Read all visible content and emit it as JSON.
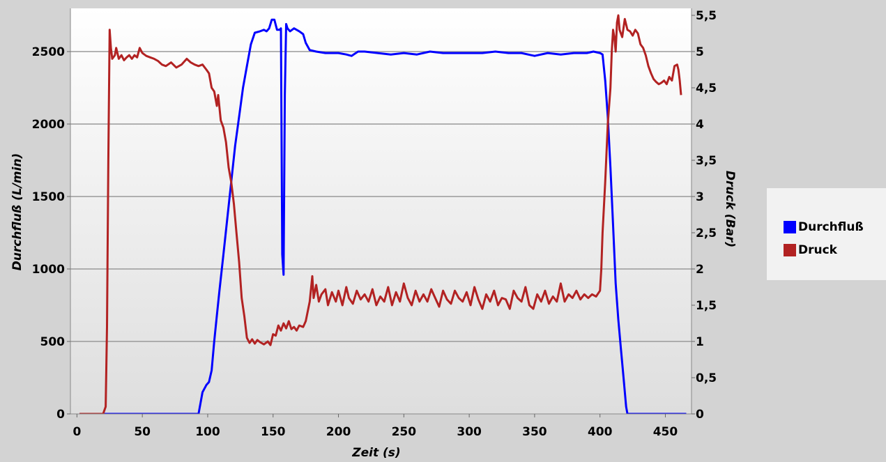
{
  "chart_data": {
    "type": "line",
    "title": "",
    "xlabel": "Zeit (s)",
    "ylabel": "Durchfluß (L/min)",
    "y2label": "Druck (Bar)",
    "xlim": [
      -5,
      470
    ],
    "ylim": [
      0,
      2750
    ],
    "y2lim": [
      0,
      5.5
    ],
    "x_ticks": [
      "0",
      "50",
      "100",
      "150",
      "200",
      "250",
      "300",
      "350",
      "400",
      "450"
    ],
    "x_tick_values": [
      0,
      50,
      100,
      150,
      200,
      250,
      300,
      350,
      400,
      450
    ],
    "y_ticks": [
      "0",
      "500",
      "1000",
      "1500",
      "2000",
      "2500"
    ],
    "y_tick_values": [
      0,
      500,
      1000,
      1500,
      2000,
      2500
    ],
    "y2_ticks": [
      "0",
      "0,5",
      "1",
      "1,5",
      "2",
      "2,5",
      "3",
      "3,5",
      "4",
      "4,5",
      "5",
      "5,5"
    ],
    "y2_tick_values": [
      0,
      0.5,
      1,
      1.5,
      2,
      2.5,
      3,
      3.5,
      4,
      4.5,
      5,
      5.5
    ],
    "grid": "horizontal",
    "legend_position": "right",
    "series": [
      {
        "name": "Durchfluß",
        "axis": "left",
        "color": "#0000ff",
        "points": [
          [
            2,
            0
          ],
          [
            20,
            0
          ],
          [
            50,
            0
          ],
          [
            80,
            0
          ],
          [
            93,
            0
          ],
          [
            96,
            150
          ],
          [
            99,
            200
          ],
          [
            101,
            220
          ],
          [
            103,
            300
          ],
          [
            105,
            500
          ],
          [
            107,
            680
          ],
          [
            109,
            850
          ],
          [
            112,
            1100
          ],
          [
            115,
            1350
          ],
          [
            118,
            1600
          ],
          [
            121,
            1850
          ],
          [
            124,
            2050
          ],
          [
            127,
            2250
          ],
          [
            130,
            2400
          ],
          [
            133,
            2550
          ],
          [
            136,
            2630
          ],
          [
            140,
            2640
          ],
          [
            143,
            2650
          ],
          [
            145,
            2640
          ],
          [
            147,
            2660
          ],
          [
            149,
            2720
          ],
          [
            151,
            2720
          ],
          [
            153,
            2650
          ],
          [
            155,
            2650
          ],
          [
            156,
            2660
          ],
          [
            157,
            1100
          ],
          [
            158,
            960
          ],
          [
            159,
            2200
          ],
          [
            160,
            2690
          ],
          [
            161,
            2660
          ],
          [
            163,
            2640
          ],
          [
            166,
            2660
          ],
          [
            170,
            2640
          ],
          [
            173,
            2620
          ],
          [
            175,
            2560
          ],
          [
            178,
            2510
          ],
          [
            183,
            2500
          ],
          [
            190,
            2490
          ],
          [
            200,
            2490
          ],
          [
            206,
            2480
          ],
          [
            210,
            2470
          ],
          [
            215,
            2500
          ],
          [
            220,
            2500
          ],
          [
            230,
            2490
          ],
          [
            240,
            2480
          ],
          [
            250,
            2490
          ],
          [
            260,
            2480
          ],
          [
            270,
            2500
          ],
          [
            280,
            2490
          ],
          [
            290,
            2490
          ],
          [
            300,
            2490
          ],
          [
            310,
            2490
          ],
          [
            320,
            2500
          ],
          [
            330,
            2490
          ],
          [
            340,
            2490
          ],
          [
            350,
            2470
          ],
          [
            360,
            2490
          ],
          [
            370,
            2480
          ],
          [
            380,
            2490
          ],
          [
            390,
            2490
          ],
          [
            395,
            2500
          ],
          [
            400,
            2490
          ],
          [
            402,
            2480
          ],
          [
            404,
            2300
          ],
          [
            406,
            2050
          ],
          [
            408,
            1700
          ],
          [
            410,
            1300
          ],
          [
            412,
            900
          ],
          [
            414,
            650
          ],
          [
            416,
            450
          ],
          [
            418,
            250
          ],
          [
            420,
            50
          ],
          [
            421,
            0
          ],
          [
            440,
            0
          ],
          [
            466,
            0
          ]
        ]
      },
      {
        "name": "Druck",
        "axis": "right",
        "color": "#b22222",
        "points": [
          [
            2,
            0
          ],
          [
            20,
            0
          ],
          [
            22,
            0.1
          ],
          [
            23,
            1.2
          ],
          [
            24,
            3.5
          ],
          [
            25,
            5.3
          ],
          [
            26,
            5.05
          ],
          [
            27,
            4.9
          ],
          [
            29,
            4.95
          ],
          [
            30,
            5.05
          ],
          [
            32,
            4.9
          ],
          [
            34,
            4.95
          ],
          [
            36,
            4.88
          ],
          [
            38,
            4.92
          ],
          [
            40,
            4.95
          ],
          [
            42,
            4.9
          ],
          [
            44,
            4.95
          ],
          [
            46,
            4.92
          ],
          [
            48,
            5.05
          ],
          [
            50,
            4.98
          ],
          [
            53,
            4.94
          ],
          [
            56,
            4.92
          ],
          [
            59,
            4.9
          ],
          [
            62,
            4.87
          ],
          [
            65,
            4.82
          ],
          [
            68,
            4.8
          ],
          [
            72,
            4.85
          ],
          [
            76,
            4.78
          ],
          [
            80,
            4.82
          ],
          [
            84,
            4.9
          ],
          [
            87,
            4.85
          ],
          [
            90,
            4.82
          ],
          [
            93,
            4.8
          ],
          [
            96,
            4.82
          ],
          [
            99,
            4.75
          ],
          [
            101,
            4.7
          ],
          [
            103,
            4.5
          ],
          [
            105,
            4.45
          ],
          [
            107,
            4.25
          ],
          [
            108,
            4.4
          ],
          [
            110,
            4.05
          ],
          [
            112,
            3.95
          ],
          [
            114,
            3.75
          ],
          [
            116,
            3.4
          ],
          [
            118,
            3.2
          ],
          [
            120,
            2.9
          ],
          [
            122,
            2.5
          ],
          [
            124,
            2.1
          ],
          [
            126,
            1.6
          ],
          [
            128,
            1.35
          ],
          [
            130,
            1.05
          ],
          [
            132,
            0.98
          ],
          [
            134,
            1.03
          ],
          [
            136,
            0.97
          ],
          [
            138,
            1.02
          ],
          [
            140,
            0.99
          ],
          [
            143,
            0.96
          ],
          [
            146,
            1.0
          ],
          [
            148,
            0.95
          ],
          [
            150,
            1.1
          ],
          [
            152,
            1.08
          ],
          [
            154,
            1.22
          ],
          [
            156,
            1.15
          ],
          [
            158,
            1.25
          ],
          [
            160,
            1.18
          ],
          [
            162,
            1.28
          ],
          [
            164,
            1.17
          ],
          [
            166,
            1.2
          ],
          [
            168,
            1.15
          ],
          [
            170,
            1.22
          ],
          [
            173,
            1.2
          ],
          [
            175,
            1.28
          ],
          [
            178,
            1.55
          ],
          [
            180,
            1.9
          ],
          [
            181,
            1.6
          ],
          [
            183,
            1.78
          ],
          [
            185,
            1.55
          ],
          [
            187,
            1.65
          ],
          [
            190,
            1.72
          ],
          [
            192,
            1.5
          ],
          [
            195,
            1.68
          ],
          [
            198,
            1.55
          ],
          [
            200,
            1.7
          ],
          [
            203,
            1.5
          ],
          [
            206,
            1.75
          ],
          [
            208,
            1.6
          ],
          [
            211,
            1.52
          ],
          [
            214,
            1.7
          ],
          [
            217,
            1.58
          ],
          [
            220,
            1.65
          ],
          [
            223,
            1.55
          ],
          [
            226,
            1.72
          ],
          [
            229,
            1.5
          ],
          [
            232,
            1.62
          ],
          [
            235,
            1.55
          ],
          [
            238,
            1.75
          ],
          [
            241,
            1.5
          ],
          [
            244,
            1.68
          ],
          [
            247,
            1.55
          ],
          [
            250,
            1.8
          ],
          [
            253,
            1.6
          ],
          [
            256,
            1.5
          ],
          [
            259,
            1.7
          ],
          [
            262,
            1.55
          ],
          [
            265,
            1.65
          ],
          [
            268,
            1.55
          ],
          [
            271,
            1.72
          ],
          [
            274,
            1.6
          ],
          [
            277,
            1.48
          ],
          [
            280,
            1.7
          ],
          [
            283,
            1.58
          ],
          [
            286,
            1.52
          ],
          [
            289,
            1.7
          ],
          [
            292,
            1.6
          ],
          [
            295,
            1.55
          ],
          [
            298,
            1.68
          ],
          [
            301,
            1.5
          ],
          [
            304,
            1.75
          ],
          [
            307,
            1.58
          ],
          [
            310,
            1.45
          ],
          [
            313,
            1.65
          ],
          [
            316,
            1.55
          ],
          [
            319,
            1.7
          ],
          [
            322,
            1.5
          ],
          [
            325,
            1.6
          ],
          [
            328,
            1.58
          ],
          [
            331,
            1.45
          ],
          [
            334,
            1.7
          ],
          [
            337,
            1.6
          ],
          [
            340,
            1.55
          ],
          [
            343,
            1.75
          ],
          [
            346,
            1.5
          ],
          [
            349,
            1.45
          ],
          [
            352,
            1.65
          ],
          [
            355,
            1.55
          ],
          [
            358,
            1.7
          ],
          [
            361,
            1.52
          ],
          [
            364,
            1.62
          ],
          [
            367,
            1.55
          ],
          [
            370,
            1.8
          ],
          [
            373,
            1.55
          ],
          [
            376,
            1.65
          ],
          [
            379,
            1.6
          ],
          [
            382,
            1.7
          ],
          [
            385,
            1.58
          ],
          [
            388,
            1.65
          ],
          [
            391,
            1.6
          ],
          [
            394,
            1.65
          ],
          [
            397,
            1.62
          ],
          [
            400,
            1.7
          ],
          [
            401,
            2.0
          ],
          [
            402,
            2.5
          ],
          [
            404,
            3.2
          ],
          [
            406,
            4.0
          ],
          [
            408,
            4.5
          ],
          [
            409,
            5.0
          ],
          [
            410,
            5.3
          ],
          [
            411,
            5.2
          ],
          [
            412,
            5.0
          ],
          [
            413,
            5.4
          ],
          [
            414,
            5.5
          ],
          [
            415,
            5.3
          ],
          [
            417,
            5.2
          ],
          [
            419,
            5.45
          ],
          [
            421,
            5.3
          ],
          [
            423,
            5.28
          ],
          [
            425,
            5.22
          ],
          [
            427,
            5.3
          ],
          [
            429,
            5.25
          ],
          [
            431,
            5.1
          ],
          [
            433,
            5.05
          ],
          [
            435,
            4.95
          ],
          [
            437,
            4.8
          ],
          [
            439,
            4.7
          ],
          [
            441,
            4.62
          ],
          [
            443,
            4.58
          ],
          [
            445,
            4.55
          ],
          [
            447,
            4.57
          ],
          [
            449,
            4.6
          ],
          [
            451,
            4.55
          ],
          [
            453,
            4.65
          ],
          [
            455,
            4.6
          ],
          [
            457,
            4.8
          ],
          [
            459,
            4.82
          ],
          [
            460,
            4.75
          ],
          [
            461,
            4.6
          ],
          [
            462,
            4.4
          ]
        ]
      }
    ]
  }
}
